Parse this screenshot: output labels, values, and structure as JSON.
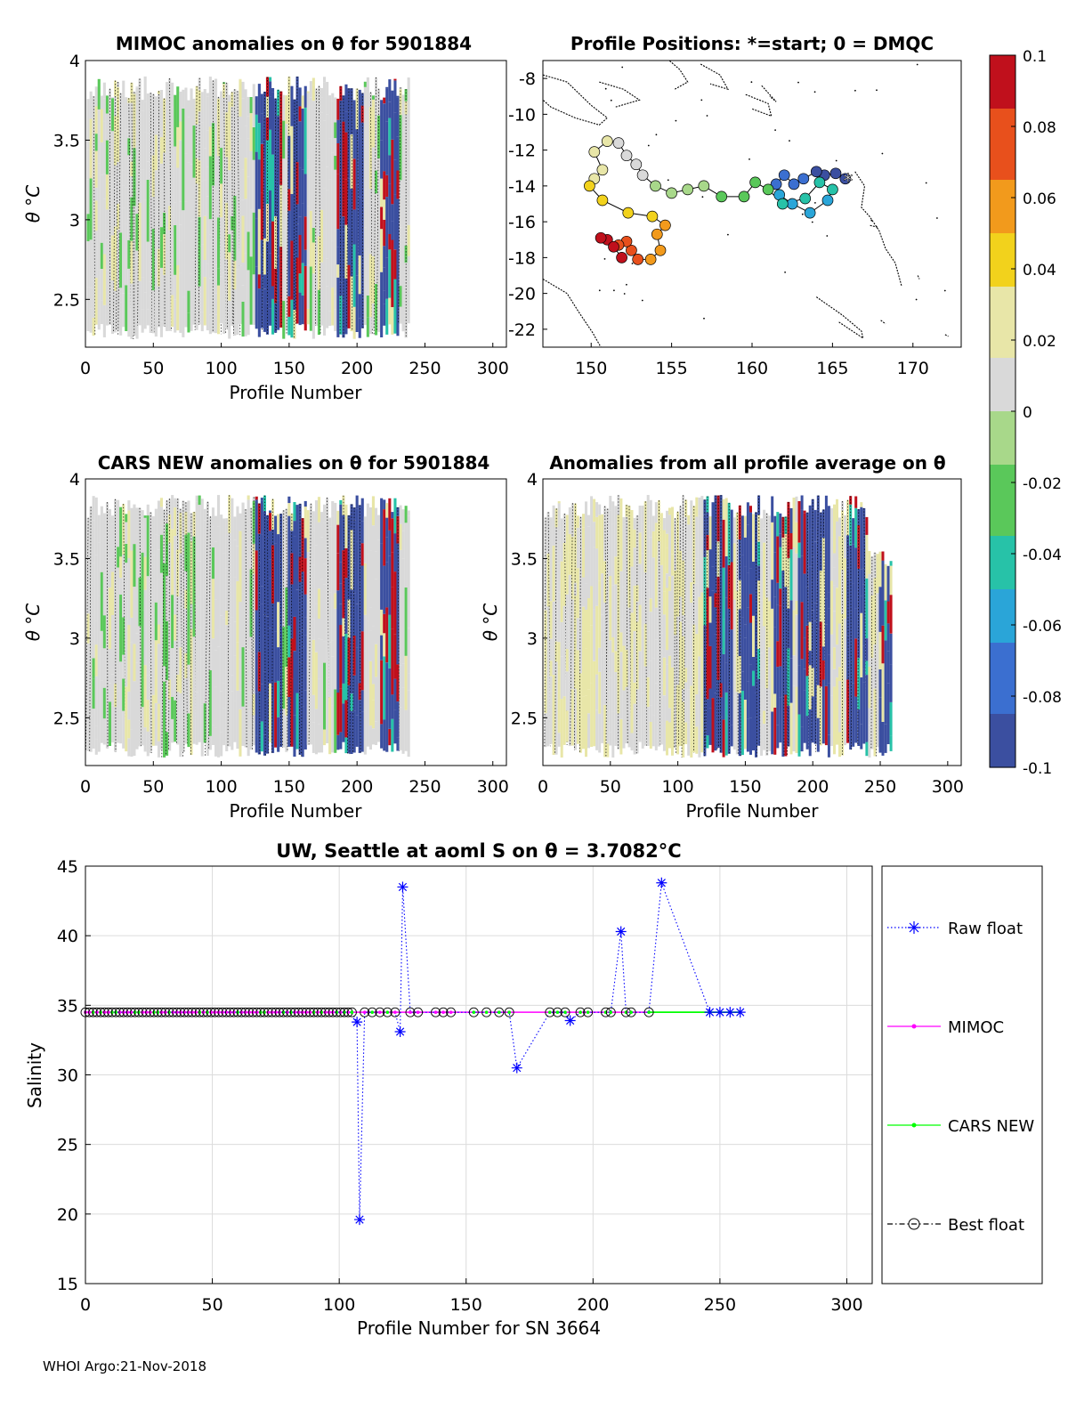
{
  "footer_text": "WHOI Argo:21-Nov-2018",
  "colorbar": {
    "tick_labels": [
      "0.1",
      "0.08",
      "0.06",
      "0.04",
      "0.02",
      "0",
      "-0.02",
      "-0.04",
      "-0.06",
      "-0.08",
      "-0.1"
    ],
    "range": [
      -0.1,
      0.1
    ],
    "stops": [
      "#3b4fa0",
      "#3b6fd0",
      "#2aa5d8",
      "#27c2a8",
      "#5ac85a",
      "#a8d88a",
      "#d9d9d9",
      "#e8e6a8",
      "#f2d21c",
      "#f29a1c",
      "#e8501c",
      "#c0101c"
    ]
  },
  "chart_data": [
    {
      "type": "heatmap",
      "title": "MIMOC anomalies on θ  for 5901884",
      "xlabel": "Profile Number",
      "ylabel": "θ °C",
      "xlim": [
        0,
        310
      ],
      "ylim": [
        2.2,
        4
      ],
      "xticks": [
        "0",
        "50",
        "100",
        "150",
        "200",
        "250",
        "300"
      ],
      "yticks": [
        "2.5",
        "3",
        "3.5",
        "4"
      ],
      "strong_anomaly_profile_ranges": [
        [
          125,
          135
        ],
        [
          135,
          145
        ],
        [
          150,
          162
        ],
        [
          185,
          205
        ],
        [
          218,
          230
        ]
      ]
    },
    {
      "type": "scatter",
      "title": "Profile Positions: *=start; 0 = DMQC",
      "xlim": [
        147,
        173
      ],
      "ylim": [
        -23,
        -7
      ],
      "xticks": [
        "150",
        "155",
        "160",
        "165",
        "170"
      ],
      "yticks": [
        "-8",
        "-10",
        "-12",
        "-14",
        "-16",
        "-18",
        "-20",
        "-22"
      ],
      "track": [
        [
          165.8,
          -13.6
        ],
        [
          165.2,
          -13.3
        ],
        [
          164.5,
          -13.4
        ],
        [
          164.0,
          -13.2
        ],
        [
          163.2,
          -13.6
        ],
        [
          162.6,
          -13.9
        ],
        [
          162.0,
          -13.4
        ],
        [
          161.5,
          -13.9
        ],
        [
          161.7,
          -14.5
        ],
        [
          162.5,
          -15.0
        ],
        [
          163.6,
          -15.5
        ],
        [
          164.7,
          -14.8
        ],
        [
          165.0,
          -14.2
        ],
        [
          164.2,
          -13.8
        ],
        [
          163.3,
          -14.7
        ],
        [
          161.9,
          -15.0
        ],
        [
          161.0,
          -14.2
        ],
        [
          160.2,
          -13.8
        ],
        [
          159.5,
          -14.6
        ],
        [
          158.1,
          -14.6
        ],
        [
          157.0,
          -14.0
        ],
        [
          156.0,
          -14.2
        ],
        [
          155.0,
          -14.4
        ],
        [
          154.0,
          -14.0
        ],
        [
          153.2,
          -13.4
        ],
        [
          152.8,
          -12.8
        ],
        [
          152.2,
          -12.3
        ],
        [
          151.7,
          -11.6
        ],
        [
          151.0,
          -11.5
        ],
        [
          150.2,
          -12.1
        ],
        [
          150.7,
          -13.1
        ],
        [
          150.2,
          -13.6
        ],
        [
          149.9,
          -14.0
        ],
        [
          150.7,
          -14.8
        ],
        [
          152.3,
          -15.5
        ],
        [
          153.8,
          -15.7
        ],
        [
          154.6,
          -16.2
        ],
        [
          154.1,
          -16.7
        ],
        [
          154.3,
          -17.6
        ],
        [
          153.7,
          -18.1
        ],
        [
          152.9,
          -18.1
        ],
        [
          152.5,
          -17.6
        ],
        [
          152.2,
          -17.1
        ],
        [
          151.7,
          -17.3
        ],
        [
          151.0,
          -17.0
        ],
        [
          150.6,
          -16.9
        ],
        [
          151.4,
          -17.4
        ],
        [
          151.9,
          -18.0
        ]
      ],
      "start_marker": [
        165.8,
        -13.6
      ]
    },
    {
      "type": "heatmap",
      "title": "CARS NEW anomalies on θ for 5901884",
      "xlabel": "Profile Number",
      "ylabel": "θ °C",
      "xlim": [
        0,
        310
      ],
      "ylim": [
        2.2,
        4
      ],
      "xticks": [
        "0",
        "50",
        "100",
        "150",
        "200",
        "250",
        "300"
      ],
      "yticks": [
        "2.5",
        "3",
        "3.5",
        "4"
      ],
      "strong_anomaly_profile_ranges": [
        [
          125,
          135
        ],
        [
          135,
          145
        ],
        [
          150,
          162
        ],
        [
          185,
          205
        ],
        [
          218,
          230
        ]
      ]
    },
    {
      "type": "heatmap",
      "title": "Anomalies from all profile average on θ",
      "xlabel": "Profile Number",
      "ylabel": "θ °C",
      "xlim": [
        0,
        310
      ],
      "ylim": [
        2.2,
        4
      ],
      "xticks": [
        "0",
        "50",
        "100",
        "150",
        "200",
        "250",
        "300"
      ],
      "yticks": [
        "2.5",
        "3",
        "3.5",
        "4"
      ],
      "strong_anomaly_profile_ranges": [
        [
          120,
          140
        ],
        [
          145,
          160
        ],
        [
          170,
          185
        ],
        [
          190,
          212
        ],
        [
          225,
          240
        ],
        [
          250,
          258
        ]
      ]
    },
    {
      "type": "line",
      "title": "UW, Seattle at aoml S on θ = 3.7082",
      "title_unit": "°C",
      "xlabel": "Profile Number for SN 3664",
      "ylabel": "Salinity",
      "xlim": [
        0,
        310
      ],
      "ylim": [
        15,
        45
      ],
      "xticks": [
        "0",
        "50",
        "100",
        "150",
        "200",
        "250",
        "300"
      ],
      "yticks": [
        "15",
        "20",
        "25",
        "30",
        "35",
        "40",
        "45"
      ],
      "baseline_salinity": 34.5,
      "raw_float_points": [
        [
          107,
          33.8
        ],
        [
          108,
          19.6
        ],
        [
          124,
          33.1
        ],
        [
          125,
          43.5
        ],
        [
          170,
          30.5
        ],
        [
          191,
          33.9
        ],
        [
          211,
          40.3
        ],
        [
          227,
          43.8
        ],
        [
          246,
          34.5
        ],
        [
          250,
          34.5
        ],
        [
          254,
          34.5
        ],
        [
          258,
          34.5
        ]
      ],
      "legend": [
        "Raw float",
        "MIMOC",
        "CARS NEW",
        "Best float"
      ],
      "series_colors": {
        "raw": "#0000ff",
        "mimoc": "#ff00ff",
        "cars": "#00ff00",
        "best": "#000000"
      }
    }
  ]
}
